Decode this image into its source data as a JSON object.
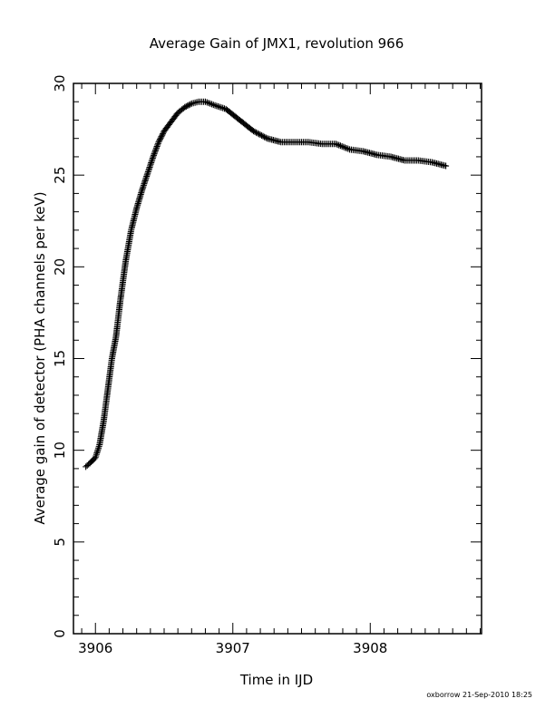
{
  "chart_data": {
    "type": "scatter",
    "title": "Average Gain of JMX1, revolution 966",
    "xlabel": "Time in IJD",
    "ylabel": "Average gain of detector (PHA channels per keV)",
    "footer": "oxborrow 21-Sep-2010 18:25",
    "xlim": [
      3905.84,
      3908.81
    ],
    "ylim": [
      0,
      30
    ],
    "x_ticks": [
      3906,
      3907,
      3908
    ],
    "y_ticks": [
      0,
      5,
      10,
      15,
      20,
      25,
      30
    ],
    "marker": "+",
    "grid": false,
    "series": [
      {
        "x": [
          3905.93,
          3905.96,
          3906.0,
          3906.03,
          3906.06,
          3906.09,
          3906.12,
          3906.15,
          3906.18,
          3906.22,
          3906.26,
          3906.3,
          3906.34,
          3906.38,
          3906.42,
          3906.46,
          3906.5,
          3906.55,
          3906.6,
          3906.65,
          3906.7,
          3906.75,
          3906.8,
          3906.87,
          3906.95,
          3907.05,
          3907.15,
          3907.25,
          3907.35,
          3907.45,
          3907.55,
          3907.65,
          3907.75,
          3907.85,
          3907.95,
          3908.05,
          3908.15,
          3908.25,
          3908.35,
          3908.45,
          3908.55
        ],
        "y": [
          9.1,
          9.3,
          9.6,
          10.3,
          11.6,
          13.3,
          15.0,
          16.2,
          18.1,
          20.3,
          22.0,
          23.2,
          24.2,
          25.1,
          26.0,
          26.8,
          27.4,
          27.9,
          28.4,
          28.7,
          28.9,
          29.0,
          29.0,
          28.8,
          28.6,
          28.0,
          27.4,
          27.0,
          26.8,
          26.8,
          26.8,
          26.7,
          26.7,
          26.4,
          26.3,
          26.1,
          26.0,
          25.8,
          25.8,
          25.7,
          25.5
        ]
      }
    ]
  }
}
